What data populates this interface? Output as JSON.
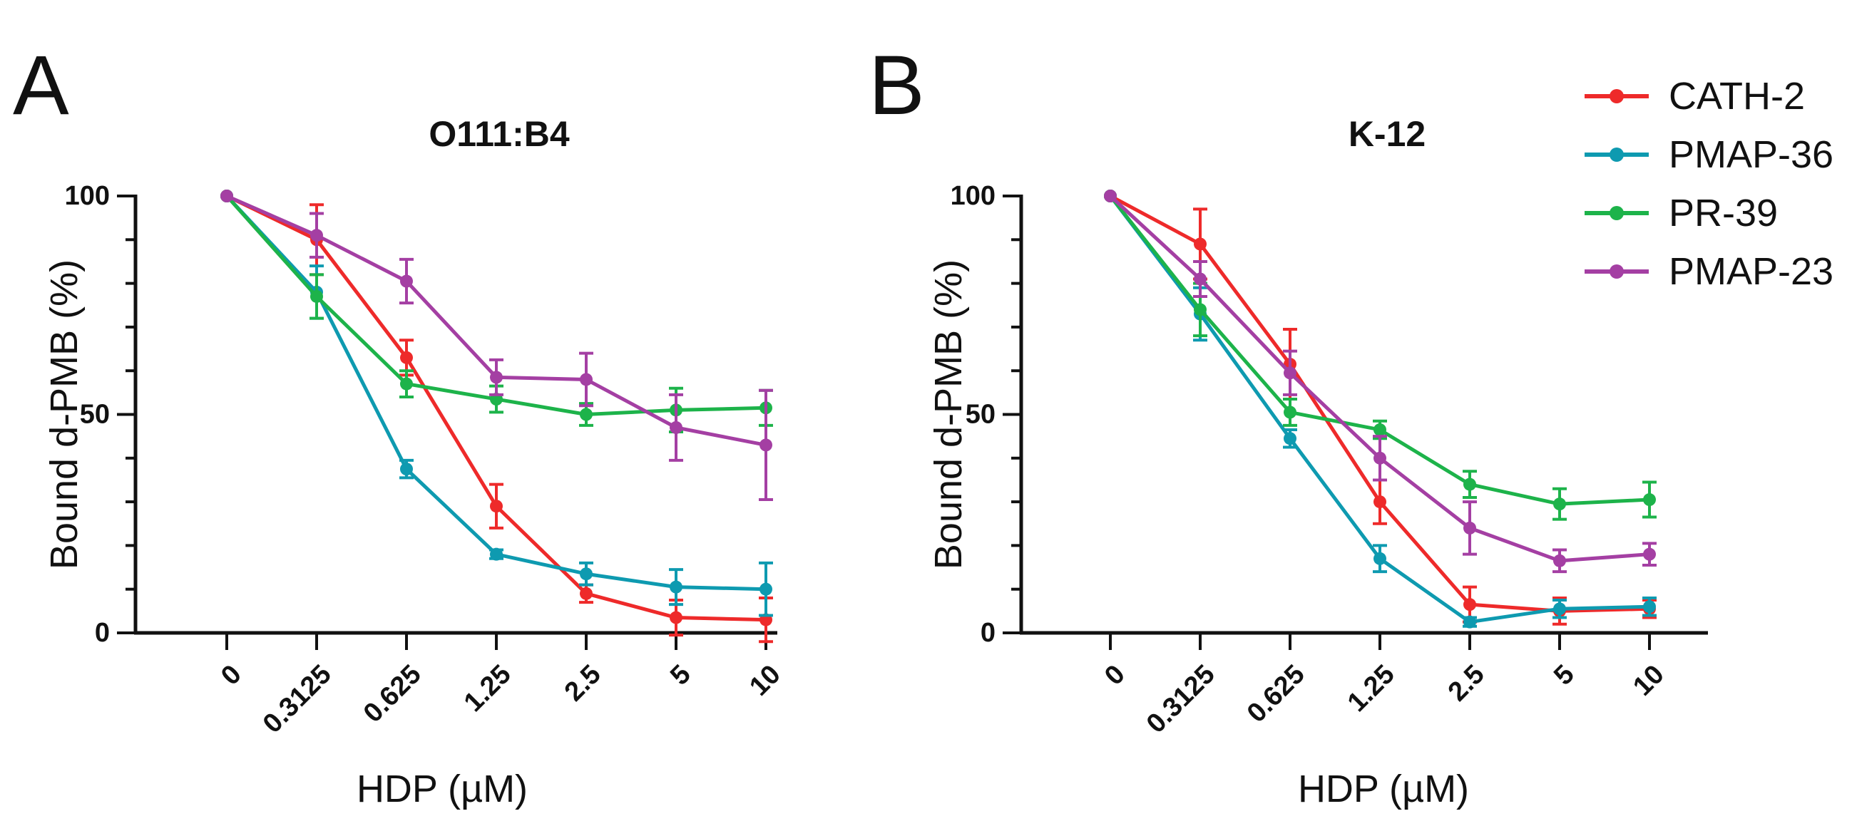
{
  "colors": {
    "CATH-2": "#ee2a2a",
    "PMAP-36": "#0e9ab0",
    "PR-39": "#1db34a",
    "PMAP-23": "#a43fa3",
    "axis": "#111111"
  },
  "legend": {
    "placement": "top-right",
    "entries": [
      "CATH-2",
      "PMAP-36",
      "PR-39",
      "PMAP-23"
    ]
  },
  "chart_data": [
    {
      "type": "line",
      "panel_letter": "A",
      "title": "O111:B4",
      "xlabel": "HDP (µM)",
      "ylabel": "Bound d-PMB (%)",
      "categories": [
        "0",
        "0.3125",
        "0.625",
        "1.25",
        "2.5",
        "5",
        "10"
      ],
      "ylim": [
        0,
        100
      ],
      "yticks": [
        "0",
        "50",
        "100"
      ],
      "grid": false,
      "series": [
        {
          "name": "CATH-2",
          "values": [
            100,
            90,
            63,
            29,
            9,
            3.5,
            3
          ],
          "errors": [
            0,
            8,
            4,
            5,
            2,
            4,
            5
          ]
        },
        {
          "name": "PMAP-36",
          "values": [
            100,
            78,
            37.5,
            18,
            13.5,
            10.5,
            10
          ],
          "errors": [
            0,
            6,
            2,
            1,
            2.5,
            4,
            6
          ]
        },
        {
          "name": "PR-39",
          "values": [
            100,
            77,
            57,
            53.5,
            50,
            51,
            51.5
          ],
          "errors": [
            0,
            5,
            3,
            3,
            2.5,
            5,
            4
          ]
        },
        {
          "name": "PMAP-23",
          "values": [
            100,
            91,
            80.5,
            58.5,
            58,
            47,
            43
          ],
          "errors": [
            0,
            5,
            5,
            4,
            6,
            7.5,
            12.5
          ]
        }
      ]
    },
    {
      "type": "line",
      "panel_letter": "B",
      "title": "K-12",
      "xlabel": "HDP (µM)",
      "ylabel": "Bound d-PMB (%)",
      "categories": [
        "0",
        "0.3125",
        "0.625",
        "1.25",
        "2.5",
        "5",
        "10"
      ],
      "ylim": [
        0,
        100
      ],
      "yticks": [
        "0",
        "50",
        "100"
      ],
      "grid": false,
      "series": [
        {
          "name": "CATH-2",
          "values": [
            100,
            89,
            61.5,
            30,
            6.5,
            5,
            5.5
          ],
          "errors": [
            0,
            8,
            8,
            5,
            4,
            3,
            2
          ]
        },
        {
          "name": "PMAP-36",
          "values": [
            100,
            73,
            44.5,
            17,
            2.5,
            5.5,
            6
          ],
          "errors": [
            0,
            6,
            2,
            3,
            1,
            2,
            2
          ]
        },
        {
          "name": "PR-39",
          "values": [
            100,
            74,
            50.5,
            46.5,
            34,
            29.5,
            30.5
          ],
          "errors": [
            0,
            6,
            3,
            2,
            3,
            3.5,
            4
          ]
        },
        {
          "name": "PMAP-23",
          "values": [
            100,
            81,
            59.5,
            40,
            24,
            16.5,
            18
          ],
          "errors": [
            0,
            4,
            5,
            5,
            6,
            2.5,
            2.5
          ]
        }
      ]
    }
  ]
}
